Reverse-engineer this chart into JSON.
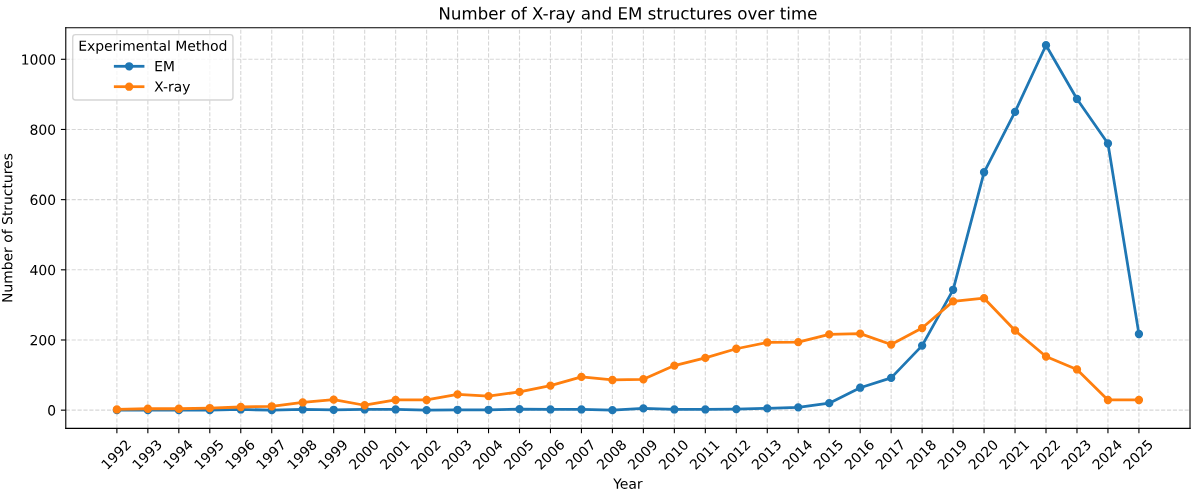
{
  "chart_data": {
    "type": "line",
    "title": "Number of X-ray and EM structures over time",
    "xlabel": "Year",
    "ylabel": "Number of Structures",
    "legend_title": "Experimental Method",
    "categories": [
      "1992",
      "1993",
      "1994",
      "1995",
      "1996",
      "1997",
      "1998",
      "1999",
      "2000",
      "2001",
      "2002",
      "2003",
      "2004",
      "2005",
      "2006",
      "2007",
      "2008",
      "2009",
      "2010",
      "2011",
      "2012",
      "2013",
      "2014",
      "2015",
      "2016",
      "2017",
      "2018",
      "2019",
      "2020",
      "2021",
      "2022",
      "2023",
      "2024",
      "2025"
    ],
    "series": [
      {
        "name": "EM",
        "color": "#1f77b4",
        "values": [
          0,
          0,
          0,
          0,
          2,
          0,
          2,
          1,
          2,
          2,
          0,
          1,
          1,
          3,
          2,
          2,
          0,
          5,
          2,
          2,
          3,
          5,
          8,
          20,
          64,
          92,
          184,
          343,
          678,
          850,
          1040,
          887,
          760,
          217
        ]
      },
      {
        "name": "X-ray",
        "color": "#ff7f0e",
        "values": [
          2,
          4,
          4,
          6,
          9,
          11,
          22,
          30,
          14,
          29,
          29,
          45,
          40,
          52,
          70,
          95,
          86,
          88,
          127,
          149,
          175,
          193,
          194,
          216,
          218,
          187,
          234,
          310,
          319,
          227,
          153,
          116,
          29,
          29
        ]
      }
    ],
    "ylim": [
      -52,
      1090
    ],
    "yticks": [
      0,
      200,
      400,
      600,
      800,
      1000
    ],
    "grid": true,
    "legend": "top left",
    "marker": "circle",
    "line_style": "solid"
  }
}
